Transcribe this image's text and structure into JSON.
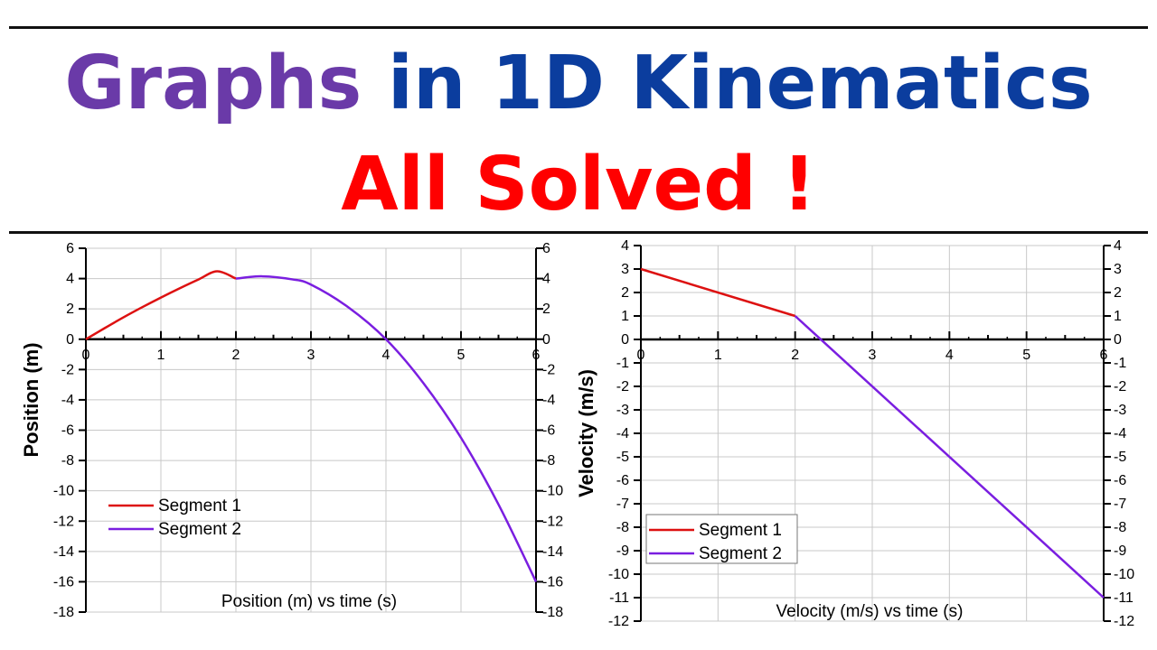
{
  "header": {
    "title_part1": "Graphs",
    "title_part2": "in 1D Kinematics",
    "subtitle": "All Solved !",
    "colors": {
      "part1": "#6a3aa8",
      "part2": "#0b3d9e",
      "subtitle": "#ff0000"
    }
  },
  "chart_data": [
    {
      "type": "line",
      "title": "Position (m) vs time (s)",
      "xlabel": "",
      "ylabel": "Position (m)",
      "xlim": [
        0,
        6
      ],
      "ylim": [
        -18,
        6
      ],
      "xticks": [
        0,
        1,
        2,
        3,
        4,
        5,
        6
      ],
      "yticks": [
        6,
        4,
        2,
        0,
        -2,
        -4,
        -6,
        -8,
        -10,
        -12,
        -14,
        -16,
        -18
      ],
      "grid": true,
      "legend": "bottom-left",
      "series": [
        {
          "name": "Segment 1",
          "color": "#dd1111",
          "x": [
            0,
            0.25,
            0.5,
            0.75,
            1,
            1.25,
            1.5,
            1.75,
            2
          ],
          "y": [
            0,
            0.73,
            1.44,
            2.11,
            2.75,
            3.36,
            3.94,
            4.48,
            4.0
          ]
        },
        {
          "name": "Segment 2",
          "color": "#7a1ee0",
          "x": [
            2,
            2.35,
            2.75,
            3,
            3.5,
            4,
            4.5,
            5,
            5.5,
            6
          ],
          "y": [
            4.0,
            4.15,
            3.95,
            3.6,
            2.1,
            0,
            -2.9,
            -6.5,
            -10.9,
            -16.0
          ]
        }
      ]
    },
    {
      "type": "line",
      "title": "Velocity (m/s) vs time (s)",
      "xlabel": "",
      "ylabel": "Velocity (m/s)",
      "xlim": [
        0,
        6
      ],
      "ylim": [
        -12,
        4
      ],
      "xticks": [
        0,
        1,
        2,
        3,
        4,
        5,
        6
      ],
      "yticks": [
        4,
        3,
        2,
        1,
        0,
        -1,
        -2,
        -3,
        -4,
        -5,
        -6,
        -7,
        -8,
        -9,
        -10,
        -11,
        -12
      ],
      "grid": true,
      "legend": "bottom-left",
      "series": [
        {
          "name": "Segment 1",
          "color": "#dd1111",
          "x": [
            0,
            2
          ],
          "y": [
            3,
            1
          ]
        },
        {
          "name": "Segment 2",
          "color": "#7a1ee0",
          "x": [
            2,
            6
          ],
          "y": [
            1,
            -11
          ]
        }
      ]
    }
  ]
}
